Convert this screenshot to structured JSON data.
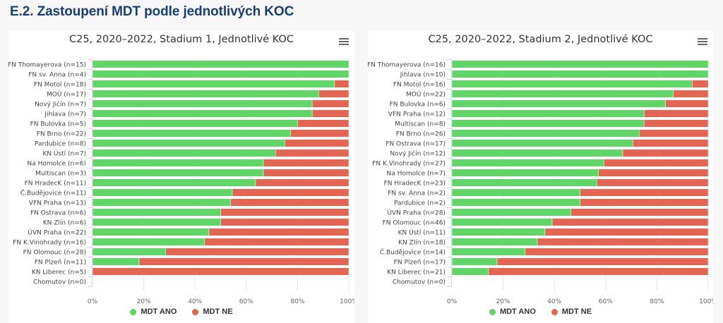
{
  "page": {
    "heading": "E.2. Zastoupení MDT podle jednotlivých KOC"
  },
  "colors": {
    "ano": "#5fd665",
    "ne": "#e46551",
    "grid": "#e6e6e6",
    "axis": "#ccd6eb"
  },
  "legend": [
    {
      "label": "MDT ANO",
      "color": "#5fd665"
    },
    {
      "label": "MDT NE",
      "color": "#e46551"
    }
  ],
  "chart_data": [
    {
      "type": "bar",
      "orientation": "horizontal",
      "stacking": "percent",
      "title": "C25, 2020–2022, Stadium 1, Jednotlivé KOC",
      "xlim": [
        0,
        100
      ],
      "x_ticks": [
        "0%",
        "20%",
        "40%",
        "60%",
        "80%",
        "100%"
      ],
      "grid": true,
      "legend_position": "bottom",
      "categories": [
        "FN Thomayerova (n=15)",
        "FN sv. Anna (n=4)",
        "FN Motol (n=18)",
        "MOÚ (n=17)",
        "Nový Jičín (n=7)",
        "Jihlava (n=7)",
        "FN Bulovka (n=5)",
        "FN Brno (n=22)",
        "Pardubice (n=8)",
        "KN Ústí (n=7)",
        "Na Homolce (n=6)",
        "Multiscan (n=3)",
        "FN HradecK (n=11)",
        "Č.Budějovice (n=11)",
        "VFN Praha (n=13)",
        "FN Ostrava (n=6)",
        "KN Zlín (n=6)",
        "ÚVN Praha (n=22)",
        "FN K.Vinohrady (n=16)",
        "FN Olomouc (n=28)",
        "FN Plzeň (n=11)",
        "KN Liberec (n=5)",
        "Chomutov (n=0)"
      ],
      "series": [
        {
          "name": "MDT ANO",
          "values": [
            15,
            4,
            17,
            15,
            6,
            6,
            4,
            17,
            6,
            5,
            4,
            2,
            7,
            6,
            7,
            3,
            3,
            10,
            7,
            8,
            2,
            0,
            0
          ]
        },
        {
          "name": "MDT NE",
          "values": [
            0,
            0,
            1,
            2,
            1,
            1,
            1,
            5,
            2,
            2,
            2,
            1,
            4,
            5,
            6,
            3,
            3,
            12,
            9,
            20,
            9,
            5,
            0
          ]
        }
      ]
    },
    {
      "type": "bar",
      "orientation": "horizontal",
      "stacking": "percent",
      "title": "C25, 2020–2022, Stadium 2, Jednotlivé KOC",
      "xlim": [
        0,
        100
      ],
      "x_ticks": [
        "0%",
        "20%",
        "40%",
        "60%",
        "80%",
        "100%"
      ],
      "grid": true,
      "legend_position": "bottom",
      "categories": [
        "FN Thomayerova (n=16)",
        "Jihlava (n=10)",
        "FN Motol (n=16)",
        "MOÚ (n=22)",
        "FN Bulovka (n=6)",
        "VFN Praha (n=12)",
        "Multiscan (n=8)",
        "FN Brno (n=26)",
        "FN Ostrava (n=17)",
        "Nový Jičín (n=12)",
        "FN K.Vinohrady (n=27)",
        "Na Homolce (n=7)",
        "FN HradecK (n=23)",
        "FN sv. Anna (n=2)",
        "Pardubice (n=2)",
        "ÚVN Praha (n=28)",
        "FN Olomouc (n=46)",
        "KN Ústí (n=11)",
        "KN Zlín (n=18)",
        "Č.Budějovice (n=14)",
        "FN Plzeň (n=17)",
        "KN Liberec (n=21)",
        "Chomutov (n=0)"
      ],
      "series": [
        {
          "name": "MDT ANO",
          "values": [
            16,
            10,
            15,
            19,
            5,
            9,
            6,
            19,
            12,
            8,
            16,
            4,
            13,
            1,
            1,
            13,
            18,
            4,
            6,
            4,
            3,
            3,
            0
          ]
        },
        {
          "name": "MDT NE",
          "values": [
            0,
            0,
            1,
            3,
            1,
            3,
            2,
            7,
            5,
            4,
            11,
            3,
            10,
            1,
            1,
            15,
            28,
            7,
            12,
            10,
            14,
            18,
            0
          ]
        }
      ]
    }
  ]
}
